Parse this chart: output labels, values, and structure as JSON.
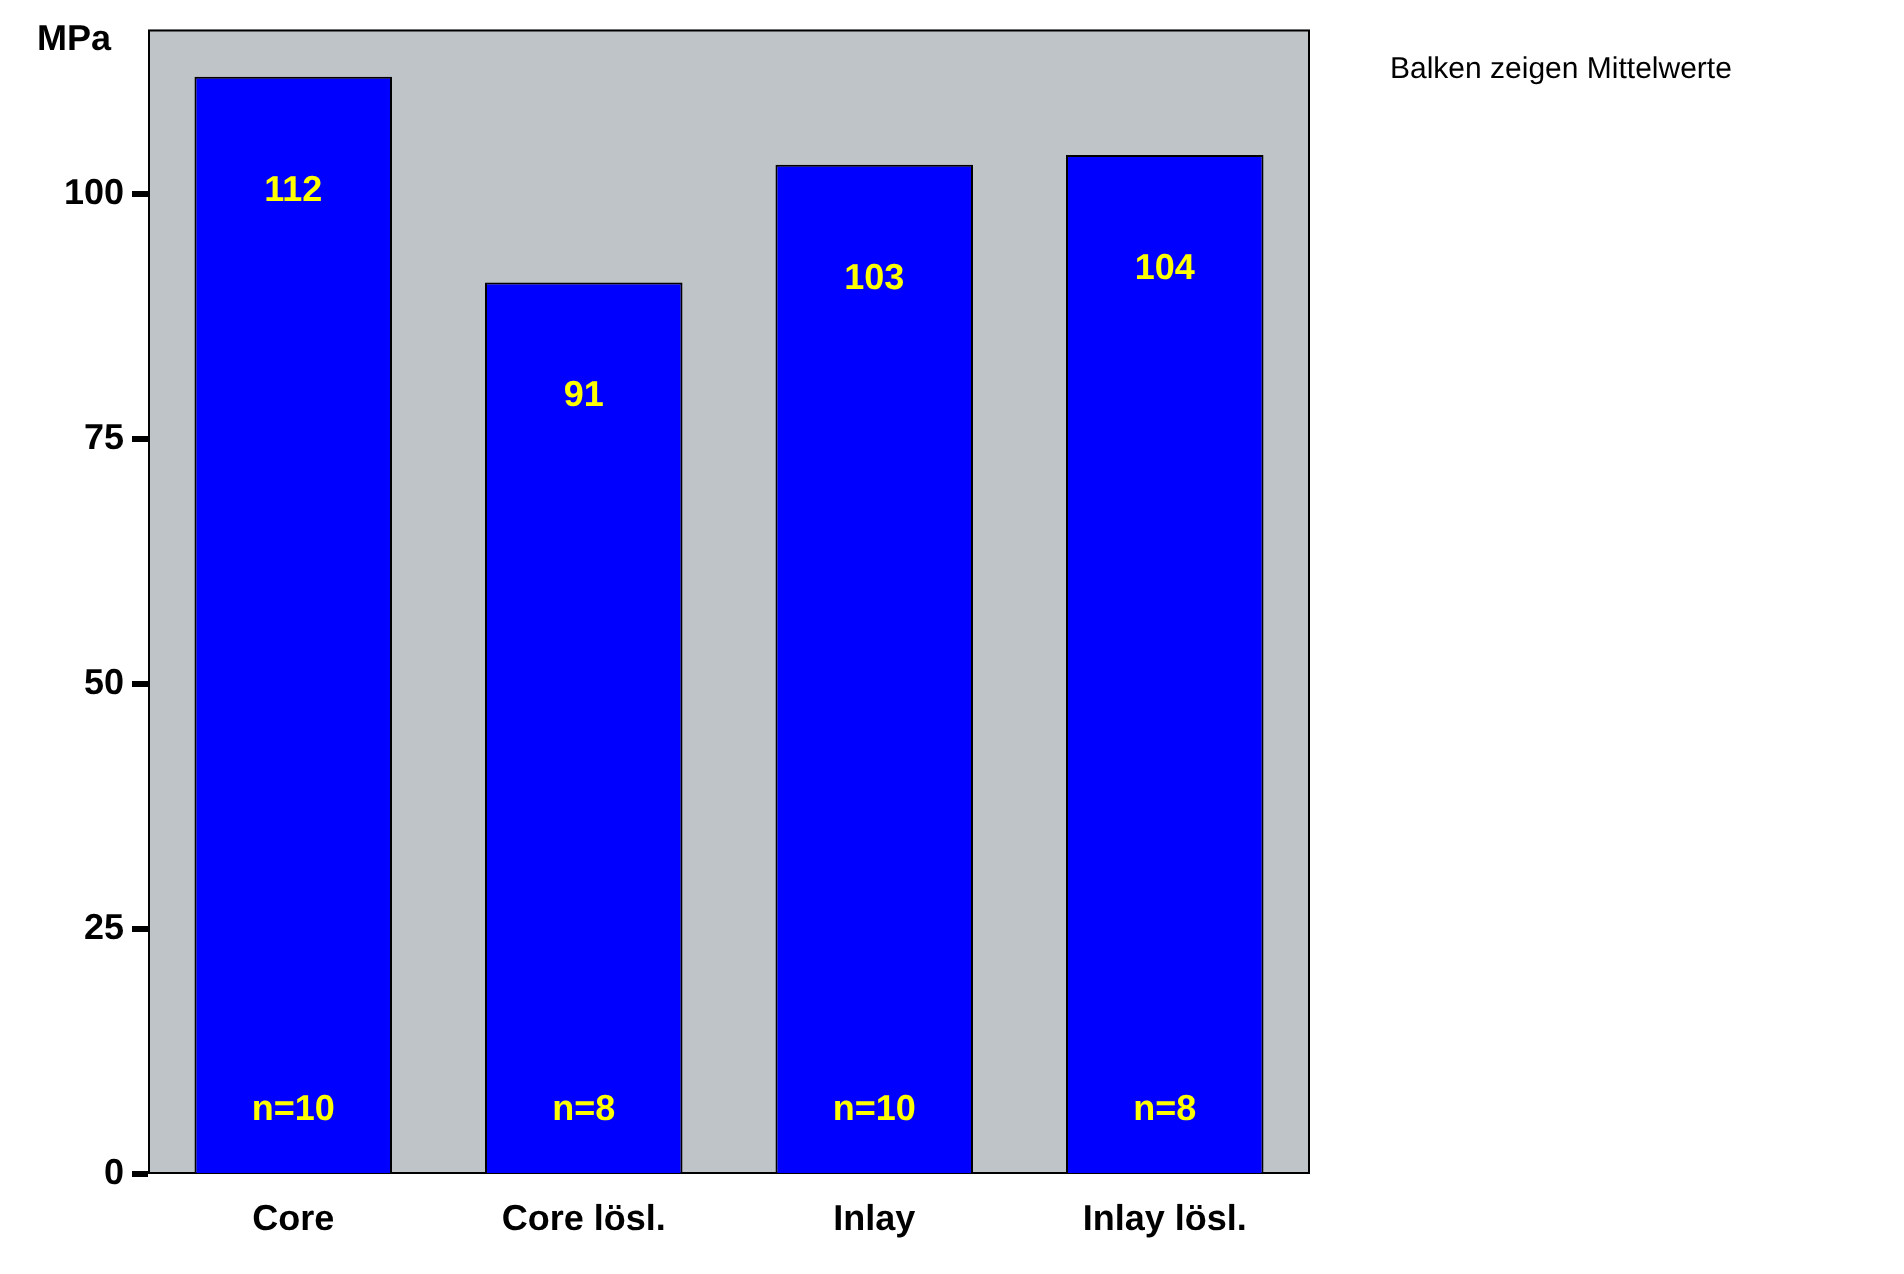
{
  "chart_data": {
    "type": "bar",
    "ylabel": "MPa",
    "categories": [
      "Core",
      "Core lösl.",
      "Inlay",
      "Inlay lösl."
    ],
    "values": [
      112,
      91,
      103,
      104
    ],
    "color": "#0000ff",
    "data_labels": true,
    "ylim": [
      0,
      116.8
    ],
    "yticks": [
      0,
      25,
      50,
      75,
      100
    ],
    "grid": false,
    "legend": false,
    "annotations": [
      "n=10",
      "n=8",
      "n=10",
      "n=8",
      "Balken zeigen Mittelwerte"
    ]
  }
}
